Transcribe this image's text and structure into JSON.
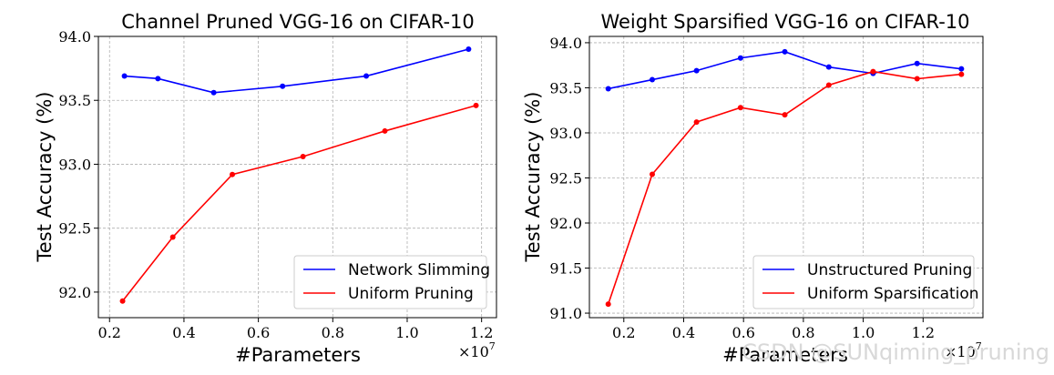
{
  "watermark": "CSDN @SUNqiming_pruning",
  "chart_data": [
    {
      "type": "line",
      "title": "Channel Pruned VGG-16 on CIFAR-10",
      "xlabel": "#Parameters",
      "ylabel": "Test Accuracy (%)",
      "x_multiplier": "×10",
      "x_exponent": "7",
      "xlim": [
        0.17,
        1.24
      ],
      "ylim": [
        91.8,
        94.0
      ],
      "xticks": [
        0.2,
        0.4,
        0.6,
        0.8,
        1.0,
        1.2
      ],
      "xtick_labels": [
        "0.2",
        "0.4",
        "0.6",
        "0.8",
        "1.0",
        "1.2"
      ],
      "yticks": [
        92.0,
        92.5,
        93.0,
        93.5,
        94.0
      ],
      "ytick_labels": [
        "92.0",
        "92.5",
        "93.0",
        "93.5",
        "94.0"
      ],
      "grid": true,
      "legend_position": "lower-right",
      "series": [
        {
          "name": "Network Slimming",
          "color": "#0000ff",
          "x": [
            0.24,
            0.33,
            0.48,
            0.665,
            0.89,
            1.165
          ],
          "y": [
            93.69,
            93.67,
            93.56,
            93.61,
            93.69,
            93.9
          ]
        },
        {
          "name": "Uniform Pruning",
          "color": "#ff0000",
          "x": [
            0.235,
            0.37,
            0.53,
            0.72,
            0.94,
            1.185
          ],
          "y": [
            91.93,
            92.43,
            92.92,
            93.06,
            93.26,
            93.46
          ]
        }
      ]
    },
    {
      "type": "line",
      "title": "Weight Sparsified VGG-16 on CIFAR-10",
      "xlabel": "#Parameters",
      "ylabel": "Test Accuracy (%)",
      "x_multiplier": "×10",
      "x_exponent": "7",
      "xlim": [
        0.085,
        1.4
      ],
      "ylim": [
        90.95,
        94.07
      ],
      "xticks": [
        0.2,
        0.4,
        0.6,
        0.8,
        1.0,
        1.2
      ],
      "xtick_labels": [
        "0.2",
        "0.4",
        "0.6",
        "0.8",
        "1.0",
        "1.2"
      ],
      "yticks": [
        91.0,
        91.5,
        92.0,
        92.5,
        93.0,
        93.5,
        94.0
      ],
      "ytick_labels": [
        "91.0",
        "91.5",
        "92.0",
        "92.5",
        "93.0",
        "93.5",
        "94.0"
      ],
      "grid": true,
      "legend_position": "lower-right",
      "series": [
        {
          "name": "Unstructured Pruning",
          "color": "#0000ff",
          "x": [
            0.148,
            0.295,
            0.443,
            0.59,
            0.738,
            0.885,
            1.033,
            1.18,
            1.328
          ],
          "y": [
            93.49,
            93.59,
            93.69,
            93.83,
            93.9,
            93.73,
            93.66,
            93.77,
            93.71
          ]
        },
        {
          "name": "Uniform Sparsification",
          "color": "#ff0000",
          "x": [
            0.148,
            0.295,
            0.443,
            0.59,
            0.738,
            0.885,
            1.033,
            1.18,
            1.328
          ],
          "y": [
            91.1,
            92.54,
            93.12,
            93.28,
            93.2,
            93.53,
            93.68,
            93.6,
            93.65
          ]
        }
      ]
    }
  ]
}
